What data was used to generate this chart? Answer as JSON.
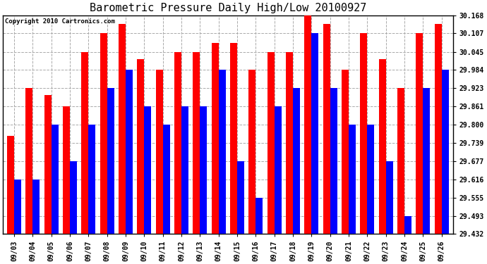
{
  "title": "Barometric Pressure Daily High/Low 20100927",
  "copyright": "Copyright 2010 Cartronics.com",
  "dates": [
    "09/03",
    "09/04",
    "09/05",
    "09/06",
    "09/07",
    "09/08",
    "09/09",
    "09/10",
    "09/11",
    "09/12",
    "09/13",
    "09/14",
    "09/15",
    "09/16",
    "09/17",
    "09/18",
    "09/19",
    "09/20",
    "09/21",
    "09/22",
    "09/23",
    "09/24",
    "09/25",
    "09/26"
  ],
  "highs": [
    29.762,
    29.923,
    29.9,
    29.861,
    30.045,
    30.107,
    30.138,
    30.02,
    29.984,
    30.045,
    30.045,
    30.076,
    30.076,
    29.984,
    30.045,
    30.045,
    30.168,
    30.138,
    29.984,
    30.107,
    30.02,
    29.923,
    30.107,
    30.138
  ],
  "lows": [
    29.616,
    29.616,
    29.8,
    29.677,
    29.8,
    29.923,
    29.984,
    29.861,
    29.8,
    29.862,
    29.862,
    29.984,
    29.677,
    29.555,
    29.862,
    29.923,
    30.107,
    29.923,
    29.8,
    29.8,
    29.677,
    29.493,
    29.923,
    29.984
  ],
  "yticks": [
    29.432,
    29.493,
    29.555,
    29.616,
    29.677,
    29.739,
    29.8,
    29.861,
    29.923,
    29.984,
    30.045,
    30.107,
    30.168
  ],
  "ymin": 29.432,
  "ymax": 30.168,
  "bar_width": 0.38,
  "high_color": "#ff0000",
  "low_color": "#0000ff",
  "bg_color": "#ffffff",
  "grid_color": "#aaaaaa",
  "title_fontsize": 11,
  "tick_fontsize": 7,
  "copyright_fontsize": 6.5
}
